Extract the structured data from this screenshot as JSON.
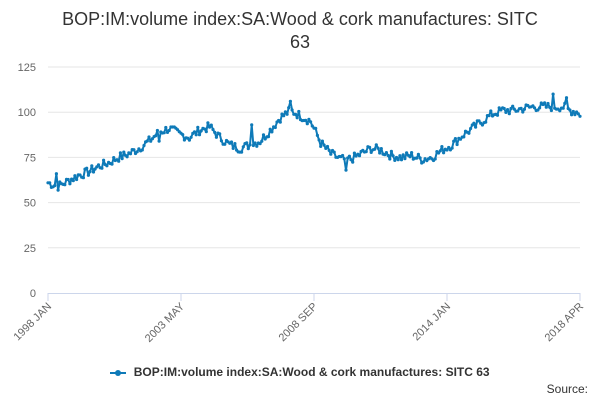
{
  "chart_data": {
    "type": "line",
    "title": "BOP:IM:volume index:SA:Wood & cork manufactures: SITC 63",
    "title_lines": [
      "BOP:IM:volume index:SA:Wood & cork manufactures: SITC",
      "63"
    ],
    "xlabel": "",
    "ylabel": "",
    "ylim": [
      0,
      125
    ],
    "y_ticks": [
      "0",
      "25",
      "50",
      "75",
      "100",
      "125"
    ],
    "x_ticks": [
      "1998 JAN",
      "2003 MAY",
      "2008 SEP",
      "2014 JAN",
      "2018 APR"
    ],
    "x_start": "1998 JAN",
    "x_end": "2018 APR",
    "legend": "BOP:IM:volume index:SA:Wood & cork manufactures: SITC 63",
    "grid": true,
    "color": "#0e7ab8",
    "series": [
      {
        "name": "BOP:IM:volume index:SA:Wood & cork manufactures: SITC 63",
        "anchors": [
          [
            0,
            61
          ],
          [
            3,
            60
          ],
          [
            6,
            59
          ],
          [
            12,
            62
          ],
          [
            18,
            65
          ],
          [
            24,
            67
          ],
          [
            30,
            70
          ],
          [
            36,
            72
          ],
          [
            42,
            75
          ],
          [
            48,
            77
          ],
          [
            54,
            80
          ],
          [
            60,
            84
          ],
          [
            66,
            89
          ],
          [
            72,
            91
          ],
          [
            78,
            88
          ],
          [
            84,
            86
          ],
          [
            90,
            90
          ],
          [
            96,
            92
          ],
          [
            102,
            86
          ],
          [
            108,
            82
          ],
          [
            114,
            80
          ],
          [
            120,
            82
          ],
          [
            126,
            84
          ],
          [
            132,
            90
          ],
          [
            138,
            97
          ],
          [
            144,
            101
          ],
          [
            150,
            98
          ],
          [
            156,
            95
          ],
          [
            162,
            83
          ],
          [
            168,
            77
          ],
          [
            174,
            74
          ],
          [
            180,
            74
          ],
          [
            186,
            77
          ],
          [
            192,
            80
          ],
          [
            198,
            79
          ],
          [
            204,
            76
          ],
          [
            210,
            75
          ],
          [
            216,
            76
          ],
          [
            222,
            74
          ],
          [
            228,
            75
          ],
          [
            234,
            79
          ],
          [
            240,
            82
          ],
          [
            246,
            87
          ],
          [
            252,
            91
          ],
          [
            258,
            95
          ],
          [
            264,
            99
          ],
          [
            270,
            101
          ],
          [
            276,
            101
          ],
          [
            282,
            102
          ],
          [
            288,
            103
          ],
          [
            294,
            103
          ],
          [
            300,
            103
          ],
          [
            306,
            103
          ],
          [
            310,
            101
          ],
          [
            315,
            100
          ],
          [
            316,
            99
          ]
        ]
      }
    ]
  },
  "footer": {
    "source_label": "Source:"
  }
}
